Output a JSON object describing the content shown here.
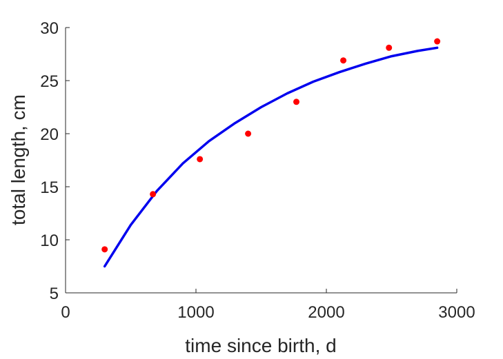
{
  "chart_data": {
    "type": "scatter",
    "title": "",
    "xlabel": "time since birth, d",
    "ylabel": "total length, cm",
    "xlim": [
      0,
      3000
    ],
    "ylim": [
      5,
      30
    ],
    "xticks": [
      0,
      1000,
      2000,
      3000
    ],
    "yticks": [
      5,
      10,
      15,
      20,
      25,
      30
    ],
    "xtick_labels": [
      "0",
      "1000",
      "2000",
      "3000"
    ],
    "ytick_labels": [
      "5",
      "10",
      "15",
      "20",
      "25",
      "30"
    ],
    "grid": false,
    "series": [
      {
        "type": "scatter",
        "color": "#ff0000",
        "x": [
          300,
          670,
          1030,
          1400,
          1770,
          2130,
          2480,
          2850
        ],
        "y": [
          9.1,
          14.3,
          17.6,
          20.0,
          23.0,
          26.9,
          28.1,
          28.7
        ]
      },
      {
        "type": "line",
        "color": "#0000ee",
        "x": [
          300,
          500,
          700,
          900,
          1100,
          1300,
          1500,
          1700,
          1900,
          2100,
          2300,
          2500,
          2700,
          2850
        ],
        "y": [
          7.5,
          11.4,
          14.6,
          17.2,
          19.3,
          21.0,
          22.5,
          23.8,
          24.9,
          25.8,
          26.6,
          27.3,
          27.8,
          28.1
        ]
      }
    ]
  }
}
